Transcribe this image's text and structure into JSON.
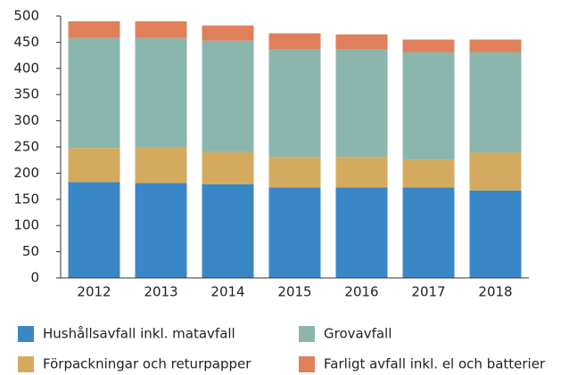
{
  "chart_data": {
    "type": "stacked_bar",
    "categories": [
      "2012",
      "2013",
      "2014",
      "2015",
      "2016",
      "2017",
      "2018"
    ],
    "series": [
      {
        "name": "Hushållsavfall inkl. matavfall",
        "color": "#3a87c8",
        "values": [
          183,
          181,
          179,
          173,
          173,
          173,
          167
        ]
      },
      {
        "name": "Förpackningar och returpapper",
        "color": "#d4aa5e",
        "values": [
          65,
          68,
          61,
          58,
          58,
          53,
          72
        ]
      },
      {
        "name": "Grovavfall",
        "color": "#8ab6ad",
        "values": [
          210,
          209,
          213,
          206,
          206,
          205,
          192
        ]
      },
      {
        "name": "Farligt avfall inkl. el och batterier",
        "color": "#e0805a",
        "values": [
          32,
          32,
          29,
          30,
          28,
          24,
          24
        ]
      }
    ],
    "ylim": [
      0,
      500
    ],
    "yticks": [
      0,
      50,
      100,
      150,
      200,
      250,
      300,
      350,
      400,
      450,
      500
    ]
  }
}
